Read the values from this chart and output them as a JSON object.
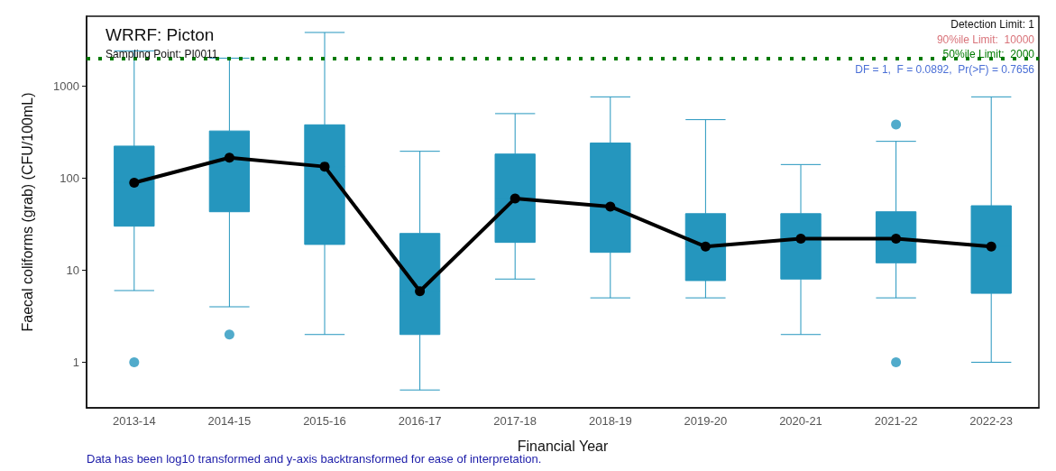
{
  "chart_data": {
    "type": "box",
    "title": "WRRF: Picton",
    "subtitle": "Sampling Point: PI0011",
    "xlabel": "Financial Year",
    "ylabel": "Faecal coliforms (grab) (CFU/100mL)",
    "categories": [
      "2013-14",
      "2014-15",
      "2015-16",
      "2016-17",
      "2017-18",
      "2018-19",
      "2019-20",
      "2020-21",
      "2021-22",
      "2022-23"
    ],
    "series": [
      {
        "color": "#2596be",
        "boxes": [
          {
            "low": 6,
            "q1": 30,
            "median": 89,
            "q3": 222,
            "high": 2400,
            "outliers": [
              1
            ]
          },
          {
            "low": 4,
            "q1": 43,
            "median": 166,
            "q3": 324,
            "high": 2000,
            "outliers": [
              2
            ]
          },
          {
            "low": 2,
            "q1": 19,
            "median": 133,
            "q3": 378,
            "high": 3800
          },
          {
            "low": 0.5,
            "q1": 2,
            "median": 5.9,
            "q3": 25,
            "high": 195
          },
          {
            "low": 8,
            "q1": 20,
            "median": 60,
            "q3": 182,
            "high": 500
          },
          {
            "low": 5,
            "q1": 15.6,
            "median": 49,
            "q3": 240,
            "high": 760
          },
          {
            "low": 5,
            "q1": 7.7,
            "median": 18,
            "q3": 41,
            "high": 430
          },
          {
            "low": 2,
            "q1": 8,
            "median": 22,
            "q3": 41,
            "high": 140
          },
          {
            "low": 5,
            "q1": 12,
            "median": 22,
            "q3": 43,
            "high": 250,
            "outliers": [
              1,
              380
            ]
          },
          {
            "low": 1,
            "q1": 5.6,
            "median": 18,
            "q3": 50,
            "high": 760
          }
        ]
      },
      {
        "type": "line",
        "color": "#000000",
        "marker": "circle",
        "values": [
          89,
          166,
          133,
          5.9,
          60,
          49,
          18,
          22,
          22,
          18
        ]
      }
    ],
    "ylim": [
      0.32,
      5700
    ],
    "yticks": [
      1,
      10,
      100,
      1000
    ],
    "log": true,
    "grid": false,
    "ref_lines": [
      {
        "axis": "y",
        "value": 2000,
        "label": "50%ile Limit:  2000",
        "color": "#007a00",
        "line_style": "dotted"
      }
    ],
    "annotations": [
      "Detection Limit: 1",
      "90%ile Limit:  10000",
      "DF = 1,  F = 0.0892,  Pr(>F) = 0.7656",
      "Data has been log10 transformed and y-axis backtransformed for ease of interpretation."
    ]
  }
}
